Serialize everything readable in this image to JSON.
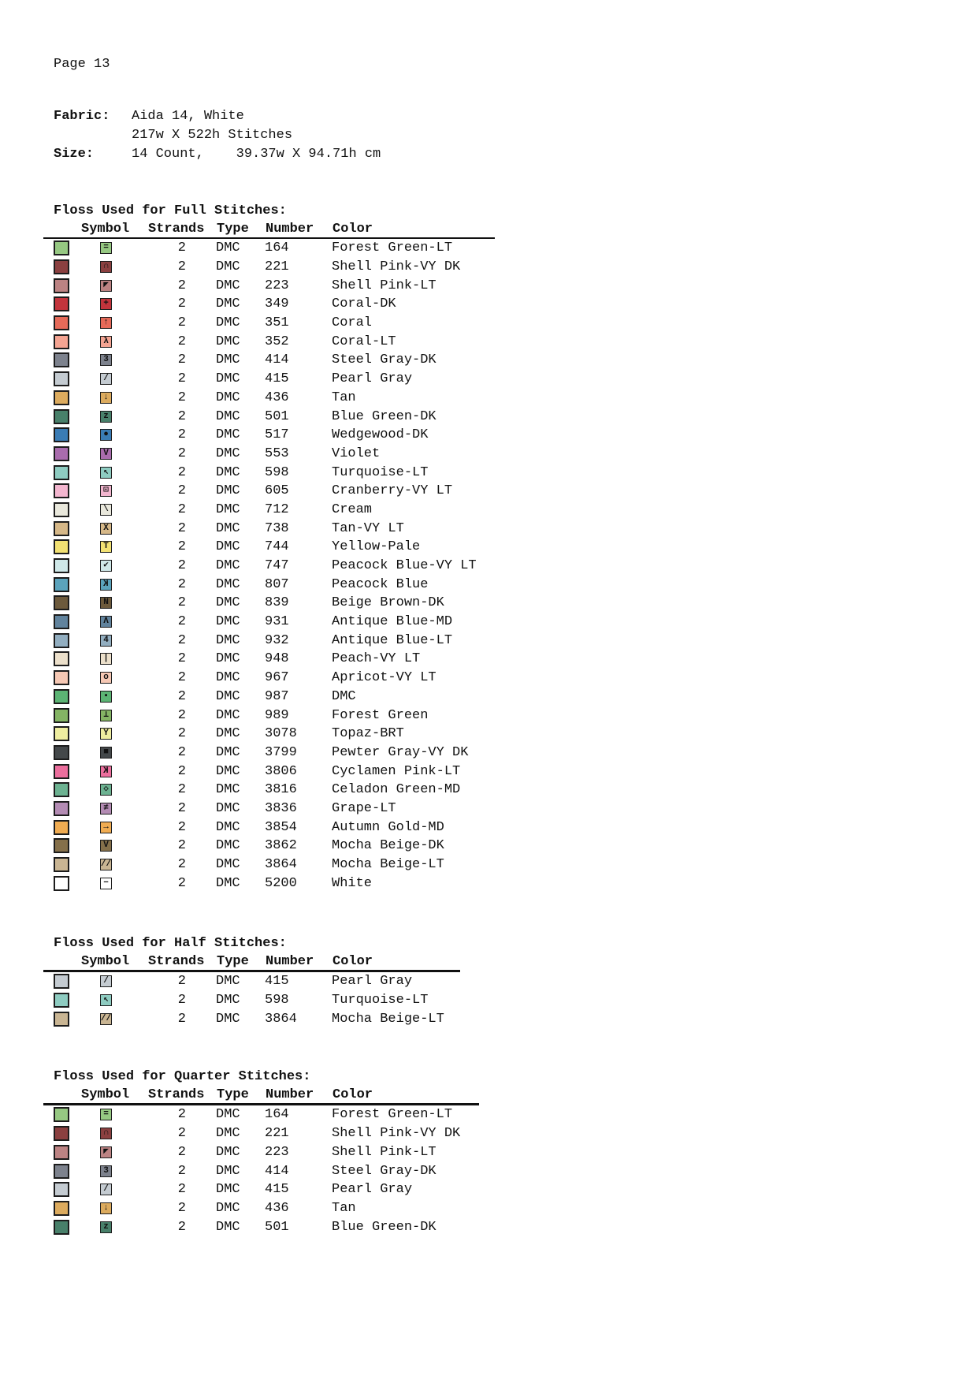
{
  "page": {
    "number_label": "Page 13"
  },
  "info": {
    "fabric_label": "Fabric:",
    "fabric_value": "Aida 14, White",
    "fabric_stitches": "217w X 522h Stitches",
    "size_label": "Size:",
    "size_value": "14 Count,    39.37w X 94.71h cm"
  },
  "tables": [
    {
      "title": "Floss Used for Full Stitches:",
      "headers": [
        "Symbol",
        "Strands",
        "Type",
        "Number",
        "Color"
      ],
      "rows": [
        {
          "swatch_hex": "#96c882",
          "symbol": "=",
          "mirror": false,
          "strands": "2",
          "type": "DMC",
          "number": "164",
          "color_name": "Forest Green-LT"
        },
        {
          "swatch_hex": "#8b4040",
          "symbol": "∩",
          "mirror": false,
          "strands": "2",
          "type": "DMC",
          "number": "221",
          "color_name": "Shell Pink-VY DK"
        },
        {
          "swatch_hex": "#bc8383",
          "symbol": "◤",
          "mirror": false,
          "strands": "2",
          "type": "DMC",
          "number": "223",
          "color_name": "Shell Pink-LT"
        },
        {
          "swatch_hex": "#c3343c",
          "symbol": "+",
          "mirror": false,
          "strands": "2",
          "type": "DMC",
          "number": "349",
          "color_name": "Coral-DK"
        },
        {
          "swatch_hex": "#e56a59",
          "symbol": "↑",
          "mirror": false,
          "strands": "2",
          "type": "DMC",
          "number": "351",
          "color_name": "Coral"
        },
        {
          "swatch_hex": "#f4a492",
          "symbol": "λ",
          "mirror": false,
          "strands": "2",
          "type": "DMC",
          "number": "352",
          "color_name": "Coral-LT"
        },
        {
          "swatch_hex": "#7d828d",
          "symbol": "3",
          "mirror": false,
          "strands": "2",
          "type": "DMC",
          "number": "414",
          "color_name": "Steel Gray-DK"
        },
        {
          "swatch_hex": "#c4cbd1",
          "symbol": "/",
          "mirror": false,
          "strands": "2",
          "type": "DMC",
          "number": "415",
          "color_name": "Pearl Gray"
        },
        {
          "swatch_hex": "#dcab5e",
          "symbol": "↓",
          "mirror": false,
          "strands": "2",
          "type": "DMC",
          "number": "436",
          "color_name": "Tan"
        },
        {
          "swatch_hex": "#48806a",
          "symbol": "z",
          "mirror": false,
          "strands": "2",
          "type": "DMC",
          "number": "501",
          "color_name": "Blue Green-DK"
        },
        {
          "swatch_hex": "#3a7cb5",
          "symbol": "●",
          "mirror": false,
          "strands": "2",
          "type": "DMC",
          "number": "517",
          "color_name": "Wedgewood-DK"
        },
        {
          "swatch_hex": "#a96cad",
          "symbol": "V",
          "mirror": false,
          "strands": "2",
          "type": "DMC",
          "number": "553",
          "color_name": "Violet"
        },
        {
          "swatch_hex": "#8eccc1",
          "symbol": "↖",
          "mirror": false,
          "strands": "2",
          "type": "DMC",
          "number": "598",
          "color_name": "Turquoise-LT"
        },
        {
          "swatch_hex": "#f3b6cf",
          "symbol": "⊡",
          "mirror": false,
          "strands": "2",
          "type": "DMC",
          "number": "605",
          "color_name": "Cranberry-VY LT"
        },
        {
          "swatch_hex": "#e9e8dc",
          "symbol": "\\",
          "mirror": false,
          "strands": "2",
          "type": "DMC",
          "number": "712",
          "color_name": "Cream"
        },
        {
          "swatch_hex": "#d6b888",
          "symbol": "X",
          "mirror": false,
          "strands": "2",
          "type": "DMC",
          "number": "738",
          "color_name": "Tan-VY LT"
        },
        {
          "swatch_hex": "#f2e173",
          "symbol": "T",
          "mirror": false,
          "strands": "2",
          "type": "DMC",
          "number": "744",
          "color_name": "Yellow-Pale"
        },
        {
          "swatch_hex": "#cfe8e8",
          "symbol": "✔",
          "mirror": false,
          "strands": "2",
          "type": "DMC",
          "number": "747",
          "color_name": "Peacock Blue-VY LT"
        },
        {
          "swatch_hex": "#5ba3bc",
          "symbol": "K",
          "mirror": true,
          "strands": "2",
          "type": "DMC",
          "number": "807",
          "color_name": "Peacock Blue"
        },
        {
          "swatch_hex": "#6d5a3c",
          "symbol": "N",
          "mirror": false,
          "strands": "2",
          "type": "DMC",
          "number": "839",
          "color_name": "Beige Brown-DK"
        },
        {
          "swatch_hex": "#61839d",
          "symbol": "Λ",
          "mirror": false,
          "strands": "2",
          "type": "DMC",
          "number": "931",
          "color_name": "Antique Blue-MD"
        },
        {
          "swatch_hex": "#92aec0",
          "symbol": "4",
          "mirror": false,
          "strands": "2",
          "type": "DMC",
          "number": "932",
          "color_name": "Antique Blue-LT"
        },
        {
          "swatch_hex": "#ece0cb",
          "symbol": "|",
          "mirror": false,
          "strands": "2",
          "type": "DMC",
          "number": "948",
          "color_name": "Peach-VY LT"
        },
        {
          "swatch_hex": "#f6c8b4",
          "symbol": "o",
          "mirror": false,
          "strands": "2",
          "type": "DMC",
          "number": "967",
          "color_name": "Apricot-VY LT"
        },
        {
          "swatch_hex": "#5cb474",
          "symbol": "▪",
          "mirror": false,
          "strands": "2",
          "type": "DMC",
          "number": "987",
          "color_name": "DMC"
        },
        {
          "swatch_hex": "#84b464",
          "symbol": "⊥",
          "mirror": false,
          "strands": "2",
          "type": "DMC",
          "number": "989",
          "color_name": "Forest Green"
        },
        {
          "swatch_hex": "#eeeda0",
          "symbol": "Y",
          "mirror": false,
          "strands": "2",
          "type": "DMC",
          "number": "3078",
          "color_name": "Topaz-BRT"
        },
        {
          "swatch_hex": "#44484a",
          "symbol": "■",
          "mirror": false,
          "strands": "2",
          "type": "DMC",
          "number": "3799",
          "color_name": "Pewter Gray-VY DK"
        },
        {
          "swatch_hex": "#ec6e9d",
          "symbol": "K",
          "mirror": true,
          "strands": "2",
          "type": "DMC",
          "number": "3806",
          "color_name": "Cyclamen Pink-LT"
        },
        {
          "swatch_hex": "#6cb291",
          "symbol": "◇",
          "mirror": false,
          "strands": "2",
          "type": "DMC",
          "number": "3816",
          "color_name": "Celadon Green-MD"
        },
        {
          "swatch_hex": "#b48cb4",
          "symbol": "≠",
          "mirror": false,
          "strands": "2",
          "type": "DMC",
          "number": "3836",
          "color_name": "Grape-LT"
        },
        {
          "swatch_hex": "#f0ac52",
          "symbol": "→",
          "mirror": false,
          "strands": "2",
          "type": "DMC",
          "number": "3854",
          "color_name": "Autumn Gold-MD"
        },
        {
          "swatch_hex": "#85704a",
          "symbol": "V",
          "mirror": false,
          "strands": "2",
          "type": "DMC",
          "number": "3862",
          "color_name": "Mocha Beige-DK"
        },
        {
          "swatch_hex": "#c9b593",
          "symbol": "//",
          "mirror": false,
          "strands": "2",
          "type": "DMC",
          "number": "3864",
          "color_name": "Mocha Beige-LT"
        },
        {
          "swatch_hex": "#ffffff",
          "symbol": "−",
          "mirror": false,
          "strands": "2",
          "type": "DMC",
          "number": "5200",
          "color_name": "White"
        }
      ]
    },
    {
      "title": "Floss Used for Half Stitches:",
      "headers": [
        "Symbol",
        "Strands",
        "Type",
        "Number",
        "Color"
      ],
      "rows": [
        {
          "swatch_hex": "#c4cbd1",
          "symbol": "/",
          "mirror": false,
          "strands": "2",
          "type": "DMC",
          "number": "415",
          "color_name": "Pearl Gray"
        },
        {
          "swatch_hex": "#8eccc1",
          "symbol": "↖",
          "mirror": false,
          "strands": "2",
          "type": "DMC",
          "number": "598",
          "color_name": "Turquoise-LT"
        },
        {
          "swatch_hex": "#c9b593",
          "symbol": "//",
          "mirror": false,
          "strands": "2",
          "type": "DMC",
          "number": "3864",
          "color_name": "Mocha Beige-LT"
        }
      ]
    },
    {
      "title": "Floss Used for Quarter Stitches:",
      "headers": [
        "Symbol",
        "Strands",
        "Type",
        "Number",
        "Color"
      ],
      "rows": [
        {
          "swatch_hex": "#96c882",
          "symbol": "=",
          "mirror": false,
          "strands": "2",
          "type": "DMC",
          "number": "164",
          "color_name": "Forest Green-LT"
        },
        {
          "swatch_hex": "#8b4040",
          "symbol": "∩",
          "mirror": false,
          "strands": "2",
          "type": "DMC",
          "number": "221",
          "color_name": "Shell Pink-VY DK"
        },
        {
          "swatch_hex": "#bc8383",
          "symbol": "◤",
          "mirror": false,
          "strands": "2",
          "type": "DMC",
          "number": "223",
          "color_name": "Shell Pink-LT"
        },
        {
          "swatch_hex": "#7d828d",
          "symbol": "3",
          "mirror": false,
          "strands": "2",
          "type": "DMC",
          "number": "414",
          "color_name": "Steel Gray-DK"
        },
        {
          "swatch_hex": "#c4cbd1",
          "symbol": "/",
          "mirror": false,
          "strands": "2",
          "type": "DMC",
          "number": "415",
          "color_name": "Pearl Gray"
        },
        {
          "swatch_hex": "#dcab5e",
          "symbol": "↓",
          "mirror": false,
          "strands": "2",
          "type": "DMC",
          "number": "436",
          "color_name": "Tan"
        },
        {
          "swatch_hex": "#48806a",
          "symbol": "z",
          "mirror": false,
          "strands": "2",
          "type": "DMC",
          "number": "501",
          "color_name": "Blue Green-DK"
        }
      ]
    }
  ]
}
